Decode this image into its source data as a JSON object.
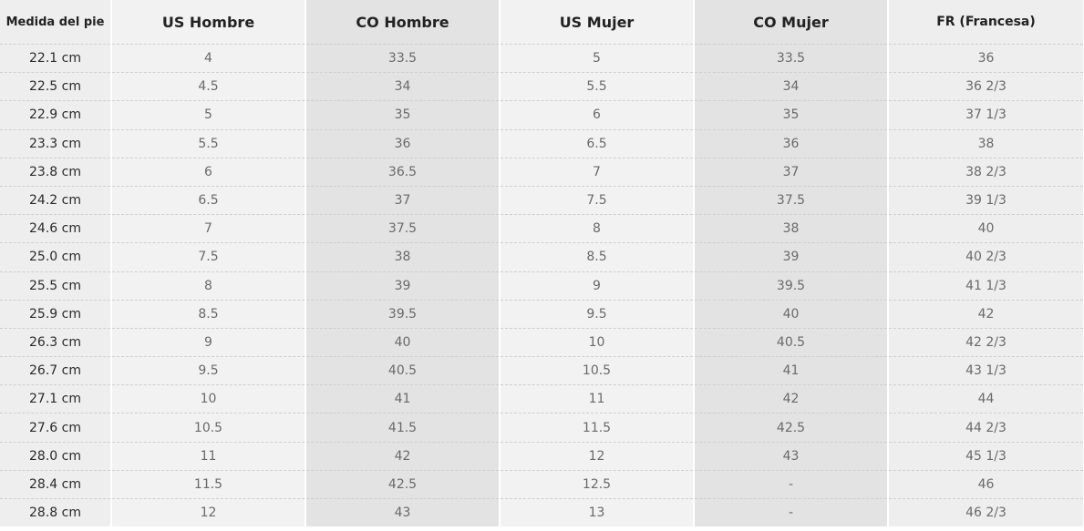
{
  "table": {
    "headers": [
      "Medida del pie",
      "US Hombre",
      "CO Hombre",
      "US Mujer",
      "CO Mujer",
      "FR (Francesa)"
    ],
    "rows": [
      [
        "22.1 cm",
        "4",
        "33.5",
        "5",
        "33.5",
        "36"
      ],
      [
        "22.5 cm",
        "4.5",
        "34",
        "5.5",
        "34",
        "36 2/3"
      ],
      [
        "22.9 cm",
        "5",
        "35",
        "6",
        "35",
        "37 1/3"
      ],
      [
        "23.3 cm",
        "5.5",
        "36",
        "6.5",
        "36",
        "38"
      ],
      [
        "23.8 cm",
        "6",
        "36.5",
        "7",
        "37",
        "38 2/3"
      ],
      [
        "24.2 cm",
        "6.5",
        "37",
        "7.5",
        "37.5",
        "39 1/3"
      ],
      [
        "24.6 cm",
        "7",
        "37.5",
        "8",
        "38",
        "40"
      ],
      [
        "25.0 cm",
        "7.5",
        "38",
        "8.5",
        "39",
        "40 2/3"
      ],
      [
        "25.5 cm",
        "8",
        "39",
        "9",
        "39.5",
        "41 1/3"
      ],
      [
        "25.9 cm",
        "8.5",
        "39.5",
        "9.5",
        "40",
        "42"
      ],
      [
        "26.3 cm",
        "9",
        "40",
        "10",
        "40.5",
        "42 2/3"
      ],
      [
        "26.7 cm",
        "9.5",
        "40.5",
        "10.5",
        "41",
        "43 1/3"
      ],
      [
        "27.1 cm",
        "10",
        "41",
        "11",
        "42",
        "44"
      ],
      [
        "27.6 cm",
        "10.5",
        "41.5",
        "11.5",
        "42.5",
        "44 2/3"
      ],
      [
        "28.0 cm",
        "11",
        "42",
        "12",
        "43",
        "45 1/3"
      ],
      [
        "28.4 cm",
        "11.5",
        "42.5",
        "12.5",
        "-",
        "46"
      ],
      [
        "28.8 cm",
        "12",
        "43",
        "13",
        "-",
        "46 2/3"
      ]
    ]
  },
  "colors": {
    "header_text": "#222222",
    "cell_text": "#6a6a6a",
    "light_column": "#f2f2f2",
    "dark_column": "#e3e3e3",
    "edge_column": "#eeeeee",
    "divider": "#cfcfcf"
  }
}
